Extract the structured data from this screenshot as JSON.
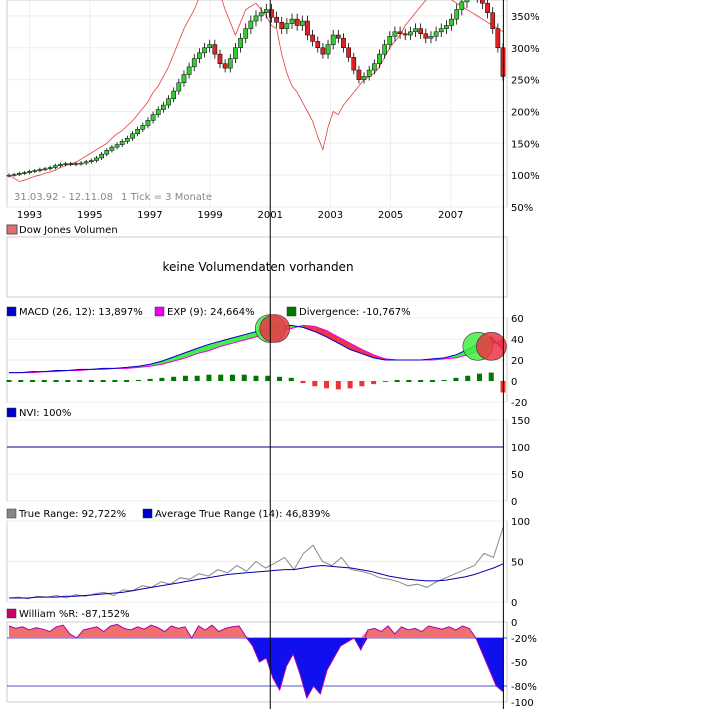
{
  "chart_data": [
    {
      "type": "candlestick",
      "title": "Dow Jones",
      "date_range": "31.03.92 - 12.11.08",
      "tick_note": "1 Tick = 3 Monate",
      "x_ticks": [
        "1993",
        "1995",
        "1997",
        "1999",
        "2001",
        "2003",
        "2005",
        "2007"
      ],
      "y_ticks": [
        "350%",
        "300%",
        "250%",
        "200%",
        "150%",
        "100%",
        "50%"
      ],
      "ylim": [
        50,
        375
      ],
      "x_range": [
        1992.25,
        2008.87
      ],
      "candle_closes": [
        100,
        101,
        103,
        104,
        106,
        107,
        109,
        110,
        112,
        115,
        117,
        118,
        117,
        118,
        119,
        121,
        123,
        127,
        133,
        139,
        144,
        148,
        153,
        158,
        165,
        172,
        178,
        186,
        195,
        203,
        210,
        220,
        232,
        245,
        258,
        270,
        283,
        292,
        300,
        305,
        290,
        275,
        268,
        283,
        300,
        315,
        330,
        342,
        350,
        355,
        360,
        348,
        340,
        330,
        338,
        345,
        335,
        342,
        320,
        310,
        300,
        290,
        305,
        320,
        315,
        300,
        285,
        265,
        250,
        255,
        265,
        275,
        290,
        305,
        318,
        325,
        322,
        320,
        325,
        330,
        322,
        315,
        318,
        325,
        330,
        335,
        345,
        360,
        372,
        385,
        395,
        380,
        370,
        355,
        330,
        300,
        255
      ],
      "candle_colors": [
        "green",
        "red"
      ],
      "overlay_line": {
        "color": "#e04040",
        "values": [
          100,
          95,
          90,
          92,
          95,
          98,
          100,
          103,
          105,
          108,
          112,
          115,
          118,
          120,
          125,
          130,
          135,
          140,
          145,
          150,
          158,
          165,
          170,
          178,
          185,
          195,
          205,
          215,
          230,
          240,
          255,
          270,
          290,
          310,
          330,
          345,
          360,
          380,
          395,
          400,
          395,
          385,
          360,
          340,
          320,
          340,
          360,
          365,
          370,
          360,
          350,
          335,
          330,
          290,
          260,
          240,
          230,
          215,
          200,
          185,
          160,
          140,
          175,
          200,
          195,
          210,
          220,
          230,
          240,
          250,
          255,
          260,
          270,
          285,
          300,
          310,
          320,
          335,
          345,
          355,
          365,
          375,
          380,
          385,
          385,
          380,
          375,
          370,
          365,
          360,
          355,
          350,
          345,
          340,
          335,
          330,
          325
        ]
      },
      "vertical_markers_year": [
        2001.0,
        2008.75
      ]
    },
    {
      "type": "volume",
      "legend": "Dow Jones Volumen",
      "legend_color": "#e07070",
      "message": "keine Volumendaten vorhanden"
    },
    {
      "type": "line",
      "name": "MACD panel",
      "legend": [
        {
          "label": "MACD (26, 12): 13,897%",
          "color": "#0000cc"
        },
        {
          "label": "EXP (9): 24,664%",
          "color": "#ee00ee"
        },
        {
          "label": "Divergence: -10,767%",
          "color": "#007700"
        }
      ],
      "y_ticks": [
        "60",
        "40",
        "20",
        "0",
        "-20"
      ],
      "ylim": [
        -20,
        60
      ],
      "macd": [
        8,
        8,
        9,
        9,
        10,
        10,
        11,
        11,
        12,
        12,
        13,
        14,
        16,
        19,
        23,
        27,
        31,
        35,
        38,
        41,
        44,
        47,
        50,
        52,
        53,
        51,
        47,
        42,
        36,
        30,
        26,
        22,
        20,
        20,
        20,
        20,
        21,
        22,
        25,
        30,
        36,
        42,
        30
      ],
      "signal": [
        8,
        8,
        8,
        9,
        9,
        10,
        10,
        11,
        11,
        12,
        12,
        13,
        14,
        16,
        19,
        22,
        26,
        29,
        33,
        36,
        39,
        42,
        45,
        48,
        50,
        53,
        52,
        48,
        42,
        36,
        30,
        25,
        21,
        20,
        20,
        20,
        20,
        21,
        22,
        25,
        29,
        34,
        40
      ],
      "divergence": [
        0,
        0,
        0,
        0,
        0,
        0,
        0,
        0,
        0,
        0,
        0,
        1,
        2,
        3,
        4,
        5,
        5,
        6,
        6,
        6,
        6,
        5,
        5,
        4,
        3,
        -2,
        -5,
        -7,
        -8,
        -7,
        -5,
        -3,
        -1,
        0,
        0,
        0,
        0,
        1,
        3,
        5,
        7,
        8,
        -11
      ],
      "markers": [
        "green circle near 2001",
        "red circle near 2001",
        "green circle near 2008",
        "red circle near 2008"
      ]
    },
    {
      "type": "line",
      "name": "NVI panel",
      "legend": [
        {
          "label": "NVI: 100%",
          "color": "#0000cc"
        }
      ],
      "y_ticks": [
        "150",
        "100",
        "50",
        "0"
      ],
      "ylim": [
        0,
        150
      ],
      "value": 100
    },
    {
      "type": "line",
      "name": "True Range panel",
      "legend": [
        {
          "label": "True Range: 92,722%",
          "color": "#888888"
        },
        {
          "label": "Average True Range (14): 46,839%",
          "color": "#0000cc"
        }
      ],
      "y_ticks": [
        "100",
        "50",
        "0"
      ],
      "ylim": [
        0,
        100
      ],
      "true_range": [
        5,
        6,
        4,
        7,
        6,
        8,
        5,
        9,
        7,
        10,
        12,
        8,
        15,
        14,
        20,
        18,
        25,
        22,
        30,
        28,
        35,
        32,
        40,
        36,
        45,
        38,
        50,
        42,
        48,
        55,
        40,
        60,
        70,
        50,
        45,
        55,
        40,
        38,
        35,
        30,
        28,
        25,
        20,
        22,
        18,
        25,
        30,
        35,
        40,
        45,
        60,
        55,
        92
      ],
      "atr": [
        5,
        5,
        5,
        6,
        6,
        6,
        7,
        7,
        8,
        9,
        10,
        11,
        12,
        14,
        16,
        18,
        20,
        22,
        24,
        26,
        28,
        30,
        32,
        34,
        35,
        36,
        37,
        38,
        39,
        40,
        40,
        42,
        44,
        45,
        44,
        43,
        42,
        40,
        38,
        35,
        32,
        30,
        28,
        27,
        26,
        26,
        27,
        29,
        31,
        34,
        38,
        42,
        47
      ]
    },
    {
      "type": "area",
      "name": "William %R panel",
      "legend": [
        {
          "label": "William %R: -87,152%",
          "color": "#cc0066"
        }
      ],
      "y_ticks": [
        "0",
        "-20%",
        "-50",
        "-80%",
        "-100"
      ],
      "ylim": [
        -100,
        0
      ],
      "values": [
        -5,
        -8,
        -6,
        -10,
        -7,
        -9,
        -12,
        -6,
        -4,
        -15,
        -20,
        -10,
        -8,
        -6,
        -12,
        -5,
        -3,
        -8,
        -10,
        -6,
        -9,
        -4,
        -7,
        -12,
        -5,
        -8,
        -6,
        -20,
        -5,
        -10,
        -4,
        -12,
        -8,
        -6,
        -5,
        -18,
        -30,
        -50,
        -45,
        -70,
        -85,
        -55,
        -40,
        -65,
        -95,
        -80,
        -90,
        -60,
        -45,
        -30,
        -25,
        -20,
        -35,
        -10,
        -8,
        -12,
        -5,
        -15,
        -6,
        -10,
        -8,
        -12,
        -5,
        -7,
        -9,
        -6,
        -10,
        -5,
        -8,
        -20,
        -40,
        -60,
        -80,
        -87
      ],
      "reference_lines": [
        -20,
        -80
      ]
    }
  ]
}
